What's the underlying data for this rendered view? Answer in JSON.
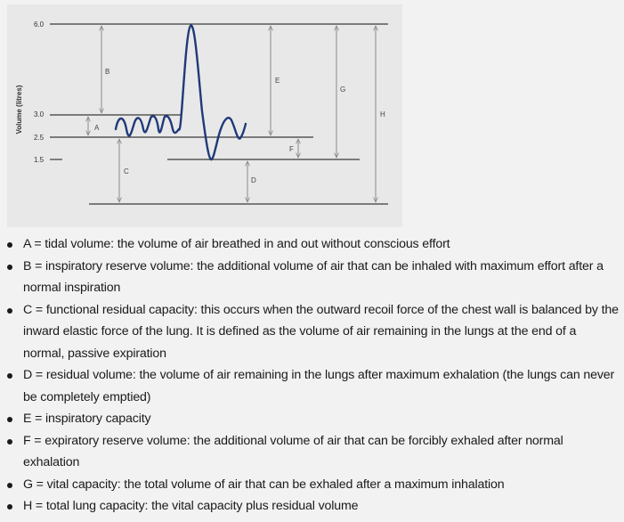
{
  "diagram": {
    "y_axis_label": "Volume (litres)",
    "y_ticks": [
      {
        "label": "6.0",
        "value": 6.0
      },
      {
        "label": "3.0",
        "value": 3.0
      },
      {
        "label": "2.5",
        "value": 2.5
      },
      {
        "label": "1.5",
        "value": 1.5
      }
    ],
    "letters": {
      "A": "A",
      "B": "B",
      "C": "C",
      "D": "D",
      "E": "E",
      "F": "F",
      "G": "G",
      "H": "H"
    },
    "colors": {
      "wave": "#1f3a78",
      "lines": "#3a3a3a",
      "arrows": "#8a8a8a"
    }
  },
  "definitions": [
    "A = tidal volume: the volume of air breathed in and out without conscious effort",
    "B = inspiratory reserve volume: the additional volume of air that can be inhaled with maximum effort after a normal inspiration",
    "C = functional residual capacity: this occurs when the outward recoil force of the chest wall is balanced by the inward elastic force of the lung. It is defined as the volume of air remaining in the lungs at the end of a normal, passive expiration",
    "D = residual volume: the volume of air remaining in the lungs after maximum exhalation (the lungs can never be completely emptied)",
    "E = inspiratory capacity",
    "F = expiratory reserve volume: the additional volume of air that can be forcibly exhaled after normal exhalation",
    "G = vital capacity: the total volume of air that can be exhaled after a maximum inhalation",
    "H = total lung capacity: the vital capacity plus residual volume"
  ]
}
